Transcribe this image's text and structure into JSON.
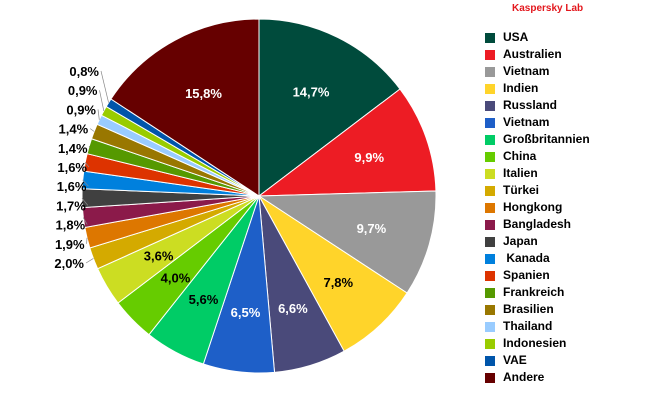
{
  "brand": "Kaspersky Lab",
  "chart_data": {
    "type": "pie",
    "legend_position": "right",
    "slices": [
      {
        "label": "USA",
        "value": 14.7,
        "display": "14,7%",
        "color": "#004b3c"
      },
      {
        "label": "Australien",
        "value": 9.9,
        "display": "9,9%",
        "color": "#ed1c24"
      },
      {
        "label": "Vietnam",
        "value": 9.7,
        "display": "9,7%",
        "color": "#999999"
      },
      {
        "label": "Indien",
        "value": 7.8,
        "display": "7,8%",
        "color": "#ffd42a"
      },
      {
        "label": "Russland",
        "value": 6.6,
        "display": "6,6%",
        "color": "#4a4a7a"
      },
      {
        "label": "Vietnam",
        "value": 6.5,
        "display": "6,5%",
        "color": "#1e5fc8"
      },
      {
        "label": "Großbritannien",
        "value": 5.6,
        "display": "5,6%",
        "color": "#00cc66"
      },
      {
        "label": "China",
        "value": 4.0,
        "display": "4,0%",
        "color": "#66cc00"
      },
      {
        "label": "Italien",
        "value": 3.6,
        "display": "3,6%",
        "color": "#ccdd22"
      },
      {
        "label": "Türkei",
        "value": 2.0,
        "display": "2,0%",
        "color": "#d4aa00"
      },
      {
        "label": "Hongkong",
        "value": 1.9,
        "display": "1,9%",
        "color": "#dd7700"
      },
      {
        "label": "Bangladesh",
        "value": 1.8,
        "display": "1,8%",
        "color": "#8b1a4a"
      },
      {
        "label": "Japan",
        "value": 1.7,
        "display": "1,7%",
        "color": "#404040"
      },
      {
        "label": " Kanada",
        "value": 1.6,
        "display": "1,6%",
        "color": "#0080dd"
      },
      {
        "label": "Spanien",
        "value": 1.6,
        "display": "1,6%",
        "color": "#dd3300"
      },
      {
        "label": "Frankreich",
        "value": 1.4,
        "display": "1,4%",
        "color": "#559900"
      },
      {
        "label": "Brasilien",
        "value": 1.4,
        "display": "1,4%",
        "color": "#997700"
      },
      {
        "label": "Thailand",
        "value": 0.9,
        "display": "0,9%",
        "color": "#99ccff"
      },
      {
        "label": "Indonesien",
        "value": 0.9,
        "display": "0,9%",
        "color": "#99cc00"
      },
      {
        "label": "VAE",
        "value": 0.8,
        "display": "0,8%",
        "color": "#0055aa"
      },
      {
        "label": "Andere",
        "value": 15.8,
        "display": "15,8%",
        "color": "#660000"
      }
    ]
  }
}
